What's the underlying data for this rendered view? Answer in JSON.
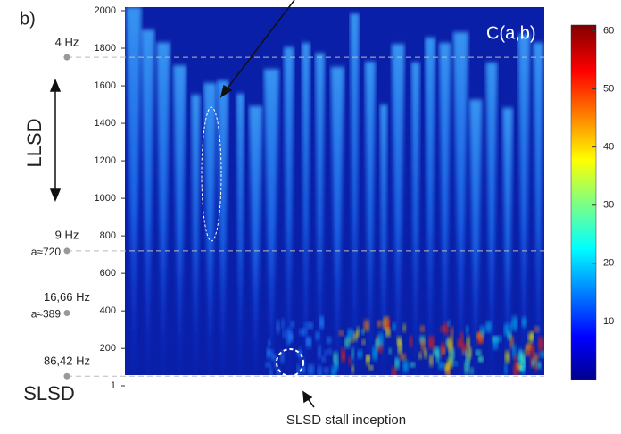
{
  "chart_data": {
    "type": "scalogram",
    "panel_label": "b)",
    "title": "C(a,b)",
    "yticks": [
      1,
      200,
      400,
      600,
      800,
      1000,
      1200,
      1400,
      1600,
      1800,
      2000
    ],
    "ylim": [
      1,
      2000
    ],
    "colorbar": {
      "ticks": [
        10,
        20,
        30,
        40,
        50,
        60
      ],
      "lim": [
        0,
        61
      ]
    },
    "levels": [
      {
        "frequency": "4 Hz",
        "a": 1752
      },
      {
        "frequency": "9 Hz",
        "a": 720,
        "a_label": "a≈720"
      },
      {
        "frequency": "16,66 Hz",
        "a": 389,
        "a_label": "a≈389"
      },
      {
        "frequency": "86,42 Hz",
        "a": 52
      }
    ],
    "annotations": {
      "llsd": "LLSD",
      "slsd": "SLSD",
      "inception": "SLSD stall inception"
    }
  }
}
